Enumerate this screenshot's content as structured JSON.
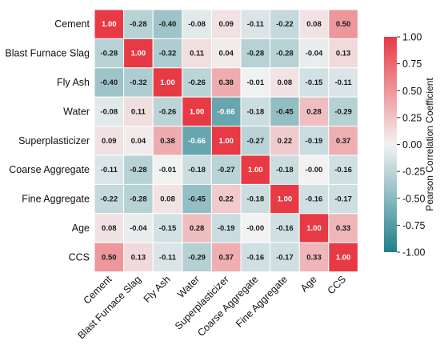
{
  "chart_data": {
    "type": "heatmap",
    "title": "",
    "variables": [
      "Cement",
      "Blast Furnace Slag",
      "Fly Ash",
      "Water",
      "Superplasticizer",
      "Coarse Aggregate",
      "Fine Aggregate",
      "Age",
      "CCS"
    ],
    "values": [
      [
        1.0,
        -0.28,
        -0.4,
        -0.08,
        0.09,
        -0.11,
        -0.22,
        0.08,
        0.5
      ],
      [
        -0.28,
        1.0,
        -0.32,
        0.11,
        0.04,
        -0.28,
        -0.28,
        -0.04,
        0.13
      ],
      [
        -0.4,
        -0.32,
        1.0,
        -0.26,
        0.38,
        -0.01,
        0.08,
        -0.15,
        -0.11
      ],
      [
        -0.08,
        0.11,
        -0.26,
        1.0,
        -0.66,
        -0.18,
        -0.45,
        0.28,
        -0.29
      ],
      [
        0.09,
        0.04,
        0.38,
        -0.66,
        1.0,
        -0.27,
        0.22,
        -0.19,
        0.37
      ],
      [
        -0.11,
        -0.28,
        -0.01,
        -0.18,
        -0.27,
        1.0,
        -0.18,
        -0.0,
        -0.16
      ],
      [
        -0.22,
        -0.28,
        0.08,
        -0.45,
        0.22,
        -0.18,
        1.0,
        -0.16,
        -0.17
      ],
      [
        0.08,
        -0.04,
        -0.15,
        0.28,
        -0.19,
        -0.0,
        -0.16,
        1.0,
        0.33
      ],
      [
        0.5,
        0.13,
        -0.11,
        -0.29,
        0.37,
        -0.16,
        -0.17,
        0.33,
        1.0
      ]
    ],
    "value_labels": [
      [
        "1.00",
        "-0.28",
        "-0.40",
        "-0.08",
        "0.09",
        "-0.11",
        "-0.22",
        "0.08",
        "0.50"
      ],
      [
        "-0.28",
        "1.00",
        "-0.32",
        "0.11",
        "0.04",
        "-0.28",
        "-0.28",
        "-0.04",
        "0.13"
      ],
      [
        "-0.40",
        "-0.32",
        "1.00",
        "-0.26",
        "0.38",
        "-0.01",
        "0.08",
        "-0.15",
        "-0.11"
      ],
      [
        "-0.08",
        "0.11",
        "-0.26",
        "1.00",
        "-0.66",
        "-0.18",
        "-0.45",
        "0.28",
        "-0.29"
      ],
      [
        "0.09",
        "0.04",
        "0.38",
        "-0.66",
        "1.00",
        "-0.27",
        "0.22",
        "-0.19",
        "0.37"
      ],
      [
        "-0.11",
        "-0.28",
        "-0.01",
        "-0.18",
        "-0.27",
        "1.00",
        "-0.18",
        "-0.00",
        "-0.16"
      ],
      [
        "-0.22",
        "-0.28",
        "0.08",
        "-0.45",
        "0.22",
        "-0.18",
        "1.00",
        "-0.16",
        "-0.17"
      ],
      [
        "0.08",
        "-0.04",
        "-0.15",
        "0.28",
        "-0.19",
        "-0.00",
        "-0.16",
        "1.00",
        "0.33"
      ],
      [
        "0.50",
        "0.13",
        "-0.11",
        "-0.29",
        "0.37",
        "-0.16",
        "-0.17",
        "0.33",
        "1.00"
      ]
    ],
    "colorbar": {
      "label": "Pearson Correlation Coefficient",
      "range": [
        -1.0,
        1.0
      ],
      "ticks": [
        1.0,
        0.75,
        0.5,
        0.25,
        0.0,
        -0.25,
        -0.5,
        -0.75,
        -1.0
      ],
      "tick_labels": [
        "1.00",
        "0.75",
        "0.50",
        "0.25",
        "0.00",
        "-0.25",
        "-0.50",
        "-0.75",
        "-1.00"
      ],
      "placement": "right"
    },
    "colors": {
      "negative": "#1f7f8c",
      "neutral": "#f2f2f2",
      "positive": "#e83a44",
      "dark_text": "#1a1a1a",
      "light_text": "#ffffff"
    },
    "grid": false
  }
}
